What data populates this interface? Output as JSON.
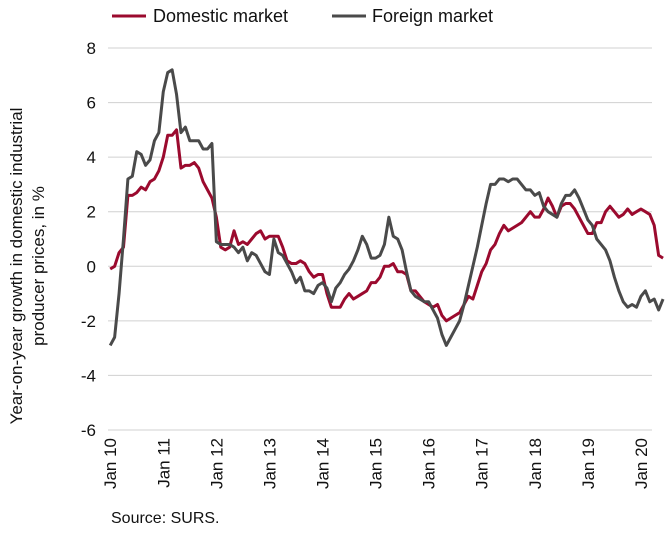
{
  "chart_data": {
    "type": "line",
    "title": "",
    "ylabel_lines": [
      "Year-on-year growth in domestic industrial",
      "producer prices, in %"
    ],
    "xlabel": "",
    "ylim": [
      -6,
      8
    ],
    "yticks": [
      8,
      6,
      4,
      2,
      0,
      -2,
      -4,
      -6
    ],
    "xticks": [
      {
        "label": "Jan 10",
        "x": 0
      },
      {
        "label": "Jan 11",
        "x": 12
      },
      {
        "label": "Jan 12",
        "x": 24
      },
      {
        "label": "Jan 13",
        "x": 36
      },
      {
        "label": "Jan 14",
        "x": 48
      },
      {
        "label": "Jan 15",
        "x": 60
      },
      {
        "label": "Jan 16",
        "x": 72
      },
      {
        "label": "Jan 17",
        "x": 84
      },
      {
        "label": "Jan 18",
        "x": 96
      },
      {
        "label": "Jan 19",
        "x": 108
      },
      {
        "label": "Jan 20",
        "x": 120
      }
    ],
    "xlim": [
      -0.5,
      122.5
    ],
    "grid": "horizontal",
    "legend": "top-left",
    "series": [
      {
        "name": "Domestic market",
        "color": "#9b0a2e",
        "values": [
          -0.1,
          0.0,
          0.5,
          0.7,
          2.6,
          2.6,
          2.7,
          2.9,
          2.8,
          3.1,
          3.2,
          3.5,
          4.0,
          4.8,
          4.8,
          5.0,
          3.6,
          3.7,
          3.7,
          3.8,
          3.6,
          3.1,
          2.8,
          2.5,
          1.8,
          0.7,
          0.6,
          0.7,
          1.3,
          0.8,
          0.9,
          0.8,
          1.0,
          1.2,
          1.3,
          1.0,
          1.1,
          1.1,
          1.1,
          0.7,
          0.2,
          0.1,
          0.1,
          0.2,
          0.1,
          -0.2,
          -0.4,
          -0.3,
          -0.3,
          -1.0,
          -1.5,
          -1.5,
          -1.5,
          -1.2,
          -1.0,
          -1.2,
          -1.1,
          -1.0,
          -0.9,
          -0.6,
          -0.6,
          -0.4,
          0.0,
          0.0,
          0.1,
          -0.2,
          -0.2,
          -0.3,
          -0.9,
          -0.9,
          -1.1,
          -1.3,
          -1.4,
          -1.5,
          -1.4,
          -1.8,
          -2.0,
          -1.9,
          -1.8,
          -1.7,
          -1.4,
          -1.1,
          -1.2,
          -0.7,
          -0.2,
          0.1,
          0.6,
          0.8,
          1.2,
          1.5,
          1.3,
          1.4,
          1.5,
          1.6,
          1.8,
          2.0,
          1.8,
          1.8,
          2.1,
          2.5,
          2.2,
          1.8,
          2.2,
          2.3,
          2.3,
          2.1,
          1.8,
          1.5,
          1.2,
          1.2,
          1.6,
          1.6,
          2.0,
          2.2,
          2.0,
          1.8,
          1.9,
          2.1,
          1.9,
          2.0,
          2.1,
          2.0,
          1.9,
          1.5,
          0.4,
          0.3
        ]
      },
      {
        "name": "Foreign market",
        "color": "#4a4a4a",
        "values": [
          -2.9,
          -2.6,
          -1.0,
          1.0,
          3.2,
          3.3,
          4.2,
          4.1,
          3.7,
          3.9,
          4.6,
          4.9,
          6.4,
          7.1,
          7.2,
          6.3,
          4.9,
          5.1,
          4.6,
          4.6,
          4.6,
          4.3,
          4.3,
          4.5,
          0.9,
          0.8,
          0.8,
          0.8,
          0.7,
          0.5,
          0.7,
          0.2,
          0.5,
          0.4,
          0.1,
          -0.2,
          -0.3,
          1.0,
          0.5,
          0.4,
          0.1,
          -0.2,
          -0.6,
          -0.4,
          -0.9,
          -0.9,
          -1.0,
          -0.7,
          -0.6,
          -0.8,
          -1.3,
          -0.8,
          -0.6,
          -0.3,
          -0.1,
          0.2,
          0.6,
          1.1,
          0.8,
          0.3,
          0.3,
          0.4,
          0.8,
          1.8,
          1.1,
          1.0,
          0.6,
          -0.2,
          -0.9,
          -1.1,
          -1.2,
          -1.3,
          -1.3,
          -1.6,
          -1.9,
          -2.5,
          -2.9,
          -2.6,
          -2.3,
          -2.0,
          -1.4,
          -0.7,
          0.0,
          0.7,
          1.5,
          2.3,
          3.0,
          3.0,
          3.2,
          3.2,
          3.1,
          3.2,
          3.2,
          3.0,
          2.8,
          2.8,
          2.6,
          2.7,
          2.2,
          2.0,
          1.9,
          1.8,
          2.3,
          2.6,
          2.6,
          2.8,
          2.5,
          2.1,
          1.7,
          1.5,
          1.0,
          0.8,
          0.6,
          0.2,
          -0.4,
          -0.9,
          -1.3,
          -1.5,
          -1.4,
          -1.5,
          -1.1,
          -0.9,
          -1.3,
          -1.2,
          -1.6,
          -1.2
        ]
      }
    ],
    "source": "Source: SURS."
  }
}
